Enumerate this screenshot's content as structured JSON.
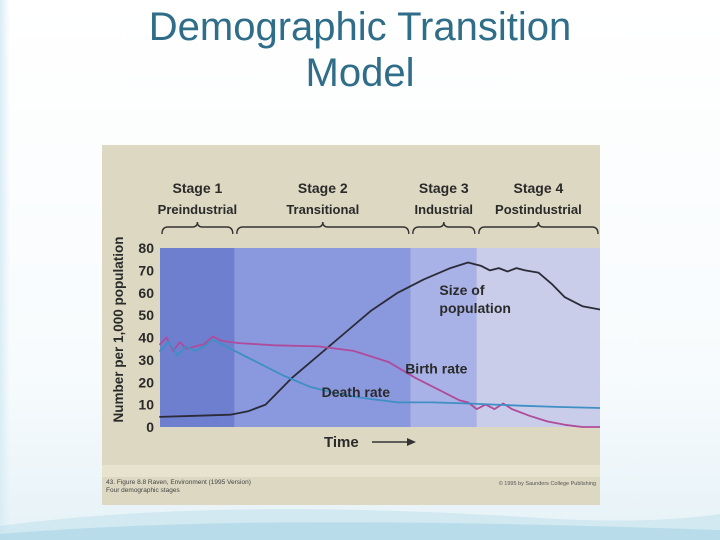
{
  "slide": {
    "title_line1": "Demographic Transition",
    "title_line2": "Model"
  },
  "colors": {
    "title": "#2f6d88",
    "population": "#2b2b38",
    "birth_rate": "#b04a9a",
    "death_rate": "#3f8fc4",
    "stage_bands": [
      "#6f7fd0",
      "#8a98de",
      "#a8b2e6",
      "#c9cdea"
    ]
  },
  "figure": {
    "caption_line1": "43.  Figure 8.8  Raven, Environment (1995 Version)",
    "caption_line2": "Four demographic stages",
    "copyright": "© 1995 by Saunders College Publishing"
  },
  "chart_data": {
    "type": "line",
    "title": "",
    "xlabel": "Time",
    "ylabel": "Number per 1,000 population",
    "ylim": [
      0,
      80
    ],
    "yticks": [
      0,
      10,
      20,
      30,
      40,
      50,
      60,
      70,
      80
    ],
    "x_range": [
      0,
      100
    ],
    "stages": [
      {
        "number": "Stage 1",
        "name": "Preindustrial",
        "start": 0,
        "end": 17
      },
      {
        "number": "Stage 2",
        "name": "Transitional",
        "start": 17,
        "end": 57
      },
      {
        "number": "Stage 3",
        "name": "Industrial",
        "start": 57,
        "end": 72
      },
      {
        "number": "Stage 4",
        "name": "Postindustrial",
        "start": 72,
        "end": 100
      }
    ],
    "series": [
      {
        "name": "Size of population",
        "points": [
          [
            0,
            4.5
          ],
          [
            8,
            5
          ],
          [
            16,
            5.5
          ],
          [
            20,
            7
          ],
          [
            24,
            10
          ],
          [
            30,
            22
          ],
          [
            36,
            32
          ],
          [
            42,
            42
          ],
          [
            48,
            52
          ],
          [
            54,
            60
          ],
          [
            60,
            66
          ],
          [
            66,
            71
          ],
          [
            70,
            73.5
          ],
          [
            73,
            72
          ],
          [
            75,
            70
          ],
          [
            77,
            71
          ],
          [
            79,
            69.5
          ],
          [
            81,
            71
          ],
          [
            83,
            70
          ],
          [
            86,
            69
          ],
          [
            89,
            64
          ],
          [
            92,
            58
          ],
          [
            96,
            54
          ],
          [
            100,
            52.5
          ]
        ]
      },
      {
        "name": "Birth rate",
        "points": [
          [
            0,
            37
          ],
          [
            1.5,
            40
          ],
          [
            3,
            34
          ],
          [
            4.5,
            38
          ],
          [
            6,
            35
          ],
          [
            8,
            36
          ],
          [
            10,
            37
          ],
          [
            12,
            40.5
          ],
          [
            14,
            38.5
          ],
          [
            18,
            37.5
          ],
          [
            26,
            36.5
          ],
          [
            36,
            36
          ],
          [
            44,
            34
          ],
          [
            52,
            29
          ],
          [
            58,
            22
          ],
          [
            64,
            16
          ],
          [
            68,
            12
          ],
          [
            70,
            11
          ],
          [
            72,
            8
          ],
          [
            74,
            10
          ],
          [
            76,
            8
          ],
          [
            78,
            10.5
          ],
          [
            80,
            8
          ],
          [
            84,
            5
          ],
          [
            88,
            2.5
          ],
          [
            92,
            1
          ],
          [
            96,
            0
          ],
          [
            100,
            0
          ]
        ]
      },
      {
        "name": "Death rate",
        "points": [
          [
            0,
            34
          ],
          [
            2,
            38
          ],
          [
            4,
            32
          ],
          [
            6,
            36
          ],
          [
            8,
            34
          ],
          [
            10,
            36
          ],
          [
            12,
            39
          ],
          [
            16,
            35
          ],
          [
            22,
            29
          ],
          [
            28,
            23
          ],
          [
            34,
            18
          ],
          [
            40,
            15
          ],
          [
            46,
            13
          ],
          [
            54,
            11
          ],
          [
            62,
            11
          ],
          [
            70,
            10.5
          ],
          [
            76,
            10
          ],
          [
            82,
            9.5
          ],
          [
            90,
            9
          ],
          [
            100,
            8.5
          ]
        ]
      }
    ],
    "annotations": [
      "Size of population",
      "Birth rate",
      "Death rate"
    ],
    "grid": false,
    "legend": "none"
  }
}
